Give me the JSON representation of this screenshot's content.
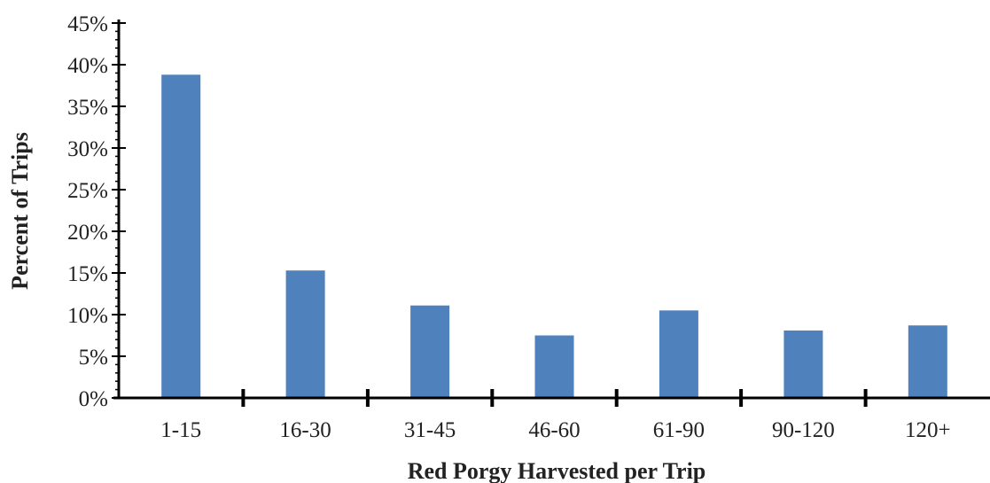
{
  "chart_data": {
    "type": "bar",
    "title": "",
    "xlabel": "Red Porgy Harvested per Trip",
    "ylabel": "Percent of Trips",
    "categories": [
      "1-15",
      "16-30",
      "31-45",
      "46-60",
      "61-90",
      "90-120",
      "120+"
    ],
    "values": [
      38.8,
      15.3,
      11.1,
      7.5,
      10.5,
      8.1,
      8.7
    ],
    "ylim": [
      0,
      45
    ],
    "yticks": [
      "0%",
      "5%",
      "10%",
      "15%",
      "20%",
      "25%",
      "30%",
      "35%",
      "40%",
      "45%"
    ],
    "grid": false,
    "legend": "none",
    "bar_color": "#4F81BD",
    "axis_color": "#000000"
  }
}
